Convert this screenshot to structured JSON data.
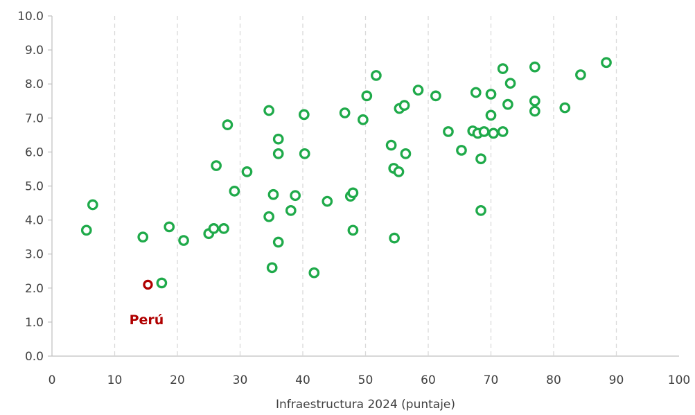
{
  "chart_data": {
    "type": "scatter",
    "xlabel": "Infraestructura 2024 (puntaje)",
    "ylabel": "",
    "xlim": [
      0,
      100
    ],
    "ylim": [
      0,
      10
    ],
    "x_ticks": [
      "0",
      "10",
      "20",
      "30",
      "40",
      "50",
      "60",
      "70",
      "80",
      "90",
      "100"
    ],
    "y_ticks": [
      "0.0",
      "1.0",
      "2.0",
      "3.0",
      "4.0",
      "5.0",
      "6.0",
      "7.0",
      "8.0",
      "9.0",
      "10.0"
    ],
    "grid": "vertical-dashed",
    "colors": {
      "points": "#1faa4a",
      "highlight": "#b00000",
      "grid": "#d9d9d9",
      "axis": "#bfbfbf"
    },
    "points": [
      [
        5.5,
        3.7
      ],
      [
        6.5,
        4.45
      ],
      [
        14.5,
        3.5
      ],
      [
        17.5,
        2.15
      ],
      [
        18.7,
        3.8
      ],
      [
        21.0,
        3.4
      ],
      [
        25.0,
        3.6
      ],
      [
        25.8,
        3.75
      ],
      [
        27.4,
        3.75
      ],
      [
        26.2,
        5.6
      ],
      [
        28.0,
        6.8
      ],
      [
        29.1,
        4.85
      ],
      [
        31.1,
        5.42
      ],
      [
        34.6,
        7.22
      ],
      [
        34.6,
        4.1
      ],
      [
        35.1,
        2.6
      ],
      [
        35.3,
        4.75
      ],
      [
        36.1,
        3.35
      ],
      [
        36.1,
        5.95
      ],
      [
        36.1,
        6.38
      ],
      [
        38.1,
        4.28
      ],
      [
        38.8,
        4.72
      ],
      [
        40.2,
        7.1
      ],
      [
        40.3,
        5.95
      ],
      [
        41.8,
        2.45
      ],
      [
        43.9,
        4.55
      ],
      [
        46.7,
        7.15
      ],
      [
        47.6,
        4.7
      ],
      [
        48.0,
        4.8
      ],
      [
        48.0,
        3.7
      ],
      [
        49.6,
        6.95
      ],
      [
        50.2,
        7.65
      ],
      [
        51.7,
        8.25
      ],
      [
        54.1,
        6.2
      ],
      [
        54.5,
        5.52
      ],
      [
        54.6,
        3.47
      ],
      [
        55.3,
        5.42
      ],
      [
        55.4,
        7.28
      ],
      [
        56.2,
        7.37
      ],
      [
        56.4,
        5.95
      ],
      [
        58.4,
        7.82
      ],
      [
        61.2,
        7.65
      ],
      [
        63.2,
        6.6
      ],
      [
        65.3,
        6.05
      ],
      [
        67.1,
        6.62
      ],
      [
        67.6,
        7.75
      ],
      [
        67.9,
        6.55
      ],
      [
        68.4,
        5.8
      ],
      [
        68.4,
        4.28
      ],
      [
        68.9,
        6.6
      ],
      [
        70.0,
        7.7
      ],
      [
        70.0,
        7.08
      ],
      [
        70.4,
        6.55
      ],
      [
        71.9,
        8.45
      ],
      [
        71.9,
        6.6
      ],
      [
        72.7,
        7.4
      ],
      [
        73.1,
        8.02
      ],
      [
        77.0,
        8.5
      ],
      [
        77.0,
        7.5
      ],
      [
        77.0,
        7.2
      ],
      [
        81.8,
        7.3
      ],
      [
        84.3,
        8.27
      ],
      [
        88.4,
        8.63
      ]
    ],
    "highlight": {
      "label": "Perú",
      "x": 15.3,
      "y": 2.1
    }
  }
}
